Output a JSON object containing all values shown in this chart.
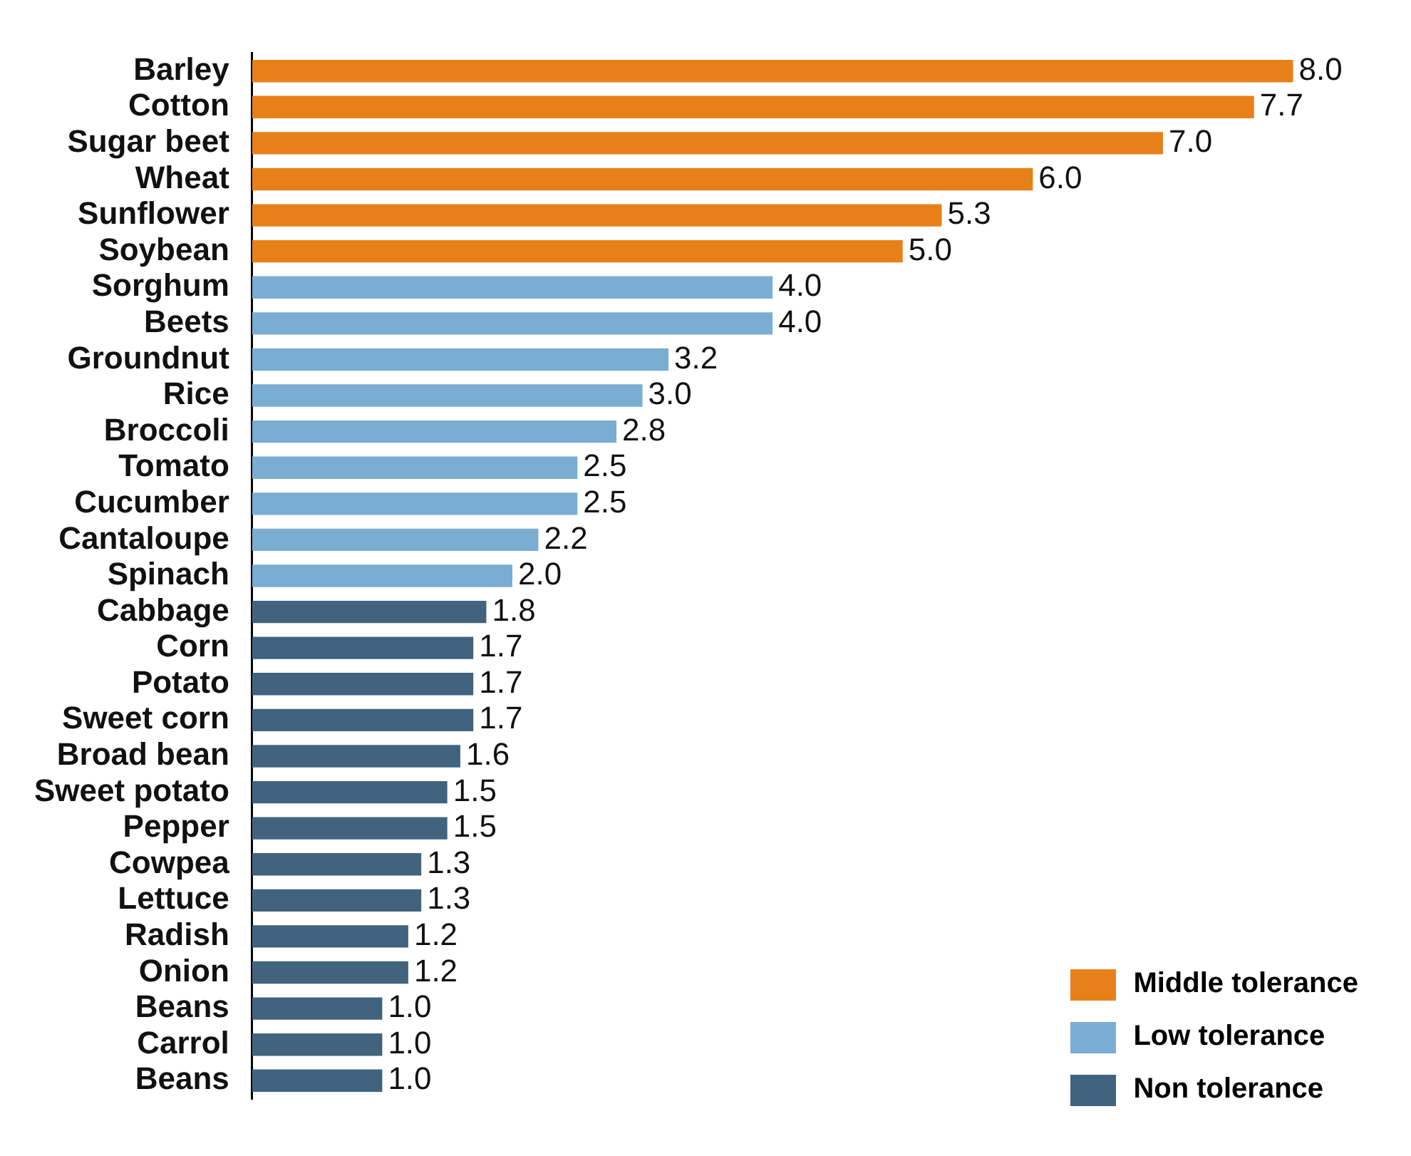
{
  "chart_data": {
    "type": "bar",
    "orientation": "horizontal",
    "categories": [
      "Barley",
      "Cotton",
      "Sugar beet",
      "Wheat",
      "Sunflower",
      "Soybean",
      "Sorghum",
      "Beets",
      "Groundnut",
      "Rice",
      "Broccoli",
      "Tomato",
      "Cucumber",
      "Cantaloupe",
      "Spinach",
      "Cabbage",
      "Corn",
      "Potato",
      "Sweet corn",
      "Broad bean",
      "Sweet potato",
      "Pepper",
      "Cowpea",
      "Lettuce",
      "Radish",
      "Onion",
      "Beans",
      "Carrol",
      "Beans"
    ],
    "series": [
      {
        "name": "Middle tolerance",
        "color": "#e8801a",
        "values": [
          8.0,
          7.7,
          7.0,
          6.0,
          5.3,
          5.0,
          null,
          null,
          null,
          null,
          null,
          null,
          null,
          null,
          null,
          null,
          null,
          null,
          null,
          null,
          null,
          null,
          null,
          null,
          null,
          null,
          null,
          null,
          null
        ],
        "value_labels": [
          "8.0",
          "7.7",
          "7.0",
          "6.0",
          "5.3",
          "5.0",
          null,
          null,
          null,
          null,
          null,
          null,
          null,
          null,
          null,
          null,
          null,
          null,
          null,
          null,
          null,
          null,
          null,
          null,
          null,
          null,
          null,
          null,
          null
        ]
      },
      {
        "name": "Low tolerance",
        "color": "#7aadd2",
        "values": [
          null,
          null,
          null,
          null,
          null,
          null,
          4.0,
          4.0,
          3.2,
          3.0,
          2.8,
          2.5,
          2.5,
          2.2,
          2.0,
          null,
          null,
          null,
          null,
          null,
          null,
          null,
          null,
          null,
          null,
          null,
          null,
          null,
          null
        ],
        "value_labels": [
          null,
          null,
          null,
          null,
          null,
          null,
          "4.0",
          "4.0",
          "3.2",
          "3.0",
          "2.8",
          "2.5",
          "2.5",
          "2.2",
          "2.0",
          null,
          null,
          null,
          null,
          null,
          null,
          null,
          null,
          null,
          null,
          null,
          null,
          null,
          null
        ]
      },
      {
        "name": "Non tolerance",
        "color": "#41637e",
        "values": [
          null,
          null,
          null,
          null,
          null,
          null,
          null,
          null,
          null,
          null,
          null,
          null,
          null,
          null,
          null,
          1.8,
          1.7,
          1.7,
          1.7,
          1.6,
          1.5,
          1.5,
          1.3,
          1.3,
          1.2,
          1.2,
          1.0,
          1.0,
          1.0
        ],
        "value_labels": [
          null,
          null,
          null,
          null,
          null,
          null,
          null,
          null,
          null,
          null,
          null,
          null,
          null,
          null,
          null,
          "1.8",
          "1.7",
          "1.7",
          "1.7",
          "1.6",
          "1.5",
          "1.5",
          "1.3",
          "1.3",
          "1.2",
          "1.2",
          "1.0",
          "1.0",
          "1.0"
        ]
      }
    ],
    "legend": "bottom right",
    "tick_labels": "y"
  }
}
